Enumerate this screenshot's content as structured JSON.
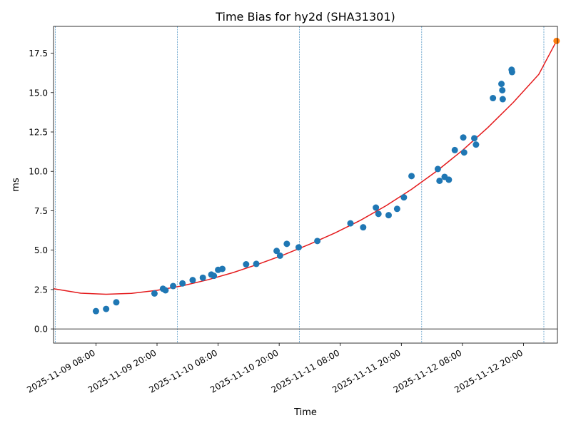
{
  "chart_data": {
    "type": "scatter",
    "title": "Time Bias for hy2d (SHA31301)",
    "xlabel": "Time",
    "ylabel": "ms",
    "xlim": [
      "2025-11-08 23:40",
      "2025-11-13 02:40"
    ],
    "ylim": [
      -0.9,
      19.2
    ],
    "x_ticks": [
      "2025-11-09 08:00",
      "2025-11-09 20:00",
      "2025-11-10 08:00",
      "2025-11-10 20:00",
      "2025-11-11 08:00",
      "2025-11-11 20:00",
      "2025-11-12 08:00",
      "2025-11-12 20:00"
    ],
    "y_ticks": [
      "0.0",
      "2.5",
      "5.0",
      "7.5",
      "10.0",
      "12.5",
      "15.0",
      "17.5"
    ],
    "grid": false,
    "zero_line": 0,
    "vertical_lines": [
      "2025-11-09 00:00",
      "2025-11-10 00:00",
      "2025-11-11 00:00",
      "2025-11-12 00:00",
      "2025-11-13 00:00"
    ],
    "colors": {
      "points": "#1f77b4",
      "fit": "#e41a1c",
      "highlight": "#ff7f0e",
      "vlines": "#1f77b4"
    },
    "series": [
      {
        "type": "scatter",
        "points": [
          [
            "2025-11-09 08:00",
            1.13
          ],
          [
            "2025-11-09 10:00",
            1.27
          ],
          [
            "2025-11-09 12:00",
            1.69
          ],
          [
            "2025-11-09 19:30",
            2.25
          ],
          [
            "2025-11-09 21:10",
            2.55
          ],
          [
            "2025-11-09 21:40",
            2.45
          ],
          [
            "2025-11-09 23:10",
            2.72
          ],
          [
            "2025-11-10 01:00",
            2.89
          ],
          [
            "2025-11-10 03:00",
            3.1
          ],
          [
            "2025-11-10 05:00",
            3.25
          ],
          [
            "2025-11-10 06:40",
            3.45
          ],
          [
            "2025-11-10 07:10",
            3.37
          ],
          [
            "2025-11-10 08:00",
            3.75
          ],
          [
            "2025-11-10 08:50",
            3.81
          ],
          [
            "2025-11-10 13:30",
            4.1
          ],
          [
            "2025-11-10 15:30",
            4.13
          ],
          [
            "2025-11-10 19:30",
            4.95
          ],
          [
            "2025-11-10 20:10",
            4.65
          ],
          [
            "2025-11-10 21:30",
            5.4
          ],
          [
            "2025-11-10 23:50",
            5.18
          ],
          [
            "2025-11-11 03:30",
            5.58
          ],
          [
            "2025-11-11 10:00",
            6.7
          ],
          [
            "2025-11-11 12:30",
            6.45
          ],
          [
            "2025-11-11 15:00",
            7.7
          ],
          [
            "2025-11-11 15:30",
            7.3
          ],
          [
            "2025-11-11 17:30",
            7.22
          ],
          [
            "2025-11-11 19:10",
            7.62
          ],
          [
            "2025-11-11 20:30",
            8.35
          ],
          [
            "2025-11-11 22:00",
            9.7
          ],
          [
            "2025-11-12 03:10",
            10.15
          ],
          [
            "2025-11-12 03:30",
            9.4
          ],
          [
            "2025-11-12 04:30",
            9.65
          ],
          [
            "2025-11-12 05:20",
            9.47
          ],
          [
            "2025-11-12 06:30",
            11.35
          ],
          [
            "2025-11-12 08:10",
            12.15
          ],
          [
            "2025-11-12 08:20",
            11.2
          ],
          [
            "2025-11-12 10:20",
            12.1
          ],
          [
            "2025-11-12 10:40",
            11.7
          ],
          [
            "2025-11-12 14:00",
            14.65
          ],
          [
            "2025-11-12 15:40",
            15.55
          ],
          [
            "2025-11-12 15:50",
            15.15
          ],
          [
            "2025-11-12 15:55",
            14.58
          ],
          [
            "2025-11-12 17:40",
            16.45
          ],
          [
            "2025-11-12 17:45",
            16.3
          ]
        ]
      },
      {
        "type": "line",
        "points": [
          [
            "2025-11-08 23:40",
            2.55
          ],
          [
            "2025-11-09 05:00",
            2.27
          ],
          [
            "2025-11-09 10:00",
            2.2
          ],
          [
            "2025-11-09 15:00",
            2.26
          ],
          [
            "2025-11-09 20:00",
            2.45
          ],
          [
            "2025-11-10 01:00",
            2.74
          ],
          [
            "2025-11-10 06:00",
            3.12
          ],
          [
            "2025-11-10 11:00",
            3.58
          ],
          [
            "2025-11-10 16:00",
            4.12
          ],
          [
            "2025-11-10 21:00",
            4.72
          ],
          [
            "2025-11-11 02:00",
            5.38
          ],
          [
            "2025-11-11 07:00",
            6.1
          ],
          [
            "2025-11-11 12:00",
            6.9
          ],
          [
            "2025-11-11 17:00",
            7.82
          ],
          [
            "2025-11-11 22:00",
            8.86
          ],
          [
            "2025-11-12 03:00",
            10.03
          ],
          [
            "2025-11-12 08:00",
            11.33
          ],
          [
            "2025-11-12 13:00",
            12.78
          ],
          [
            "2025-11-12 18:00",
            14.38
          ],
          [
            "2025-11-12 23:00",
            16.16
          ],
          [
            "2025-11-13 02:30",
            18.28
          ]
        ]
      },
      {
        "type": "scatter",
        "points": [
          [
            "2025-11-13 02:30",
            18.28
          ]
        ]
      }
    ]
  }
}
